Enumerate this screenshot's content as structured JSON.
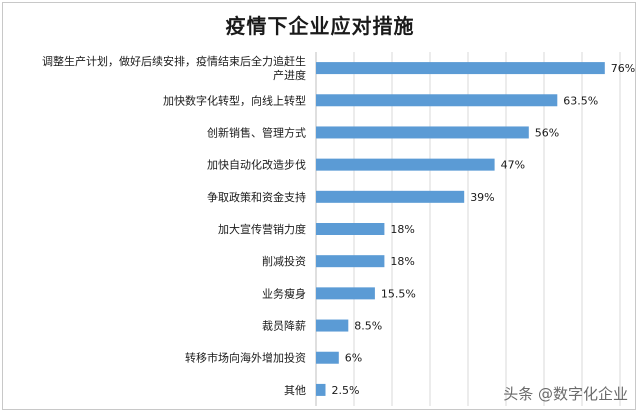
{
  "chart_data": {
    "type": "bar",
    "orientation": "horizontal",
    "title": "疫情下企业应对措施",
    "categories": [
      [
        "调整生产计划，做好后续安排，疫情结束后全力追赶生",
        "产进度"
      ],
      [
        "加快数字化转型，向线上转型"
      ],
      [
        "创新销售、管理方式"
      ],
      [
        "加快自动化改造步伐"
      ],
      [
        "争取政策和资金支持"
      ],
      [
        "加大宣传营销力度"
      ],
      [
        "削减投资"
      ],
      [
        "业务瘦身"
      ],
      [
        "裁员降薪"
      ],
      [
        "转移市场向海外增加投资"
      ],
      [
        "其他"
      ]
    ],
    "values": [
      76,
      63.5,
      56,
      47,
      39,
      18,
      18,
      15.5,
      8.5,
      6,
      2.5
    ],
    "value_labels": [
      "76%",
      "63.5%",
      "56%",
      "47%",
      "39%",
      "18%",
      "18%",
      "15.5%",
      "8.5%",
      "6%",
      "2.5%"
    ],
    "xlim": [
      0,
      80
    ],
    "grid": true,
    "bar_color": "#5b9bd5",
    "grid_color": "#d9d9d9"
  },
  "watermark": "头条 @数字化企业"
}
